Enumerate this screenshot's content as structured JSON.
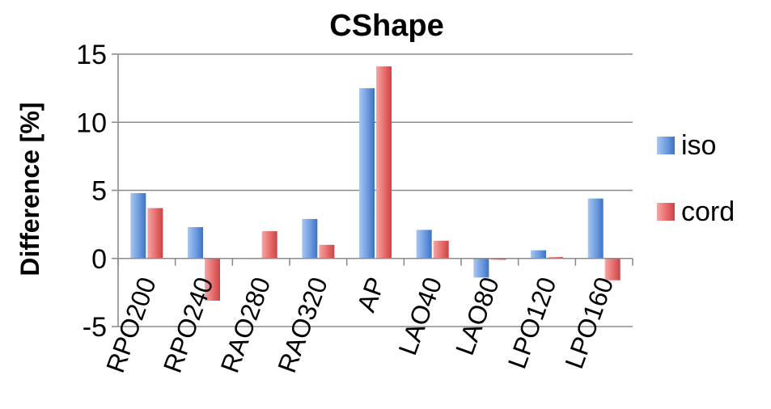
{
  "chart_data": {
    "type": "bar",
    "title": "CShape",
    "ylabel": "Difference [%]",
    "xlabel": "",
    "ylim": [
      -5,
      15
    ],
    "yticks": [
      -5,
      0,
      5,
      10,
      15
    ],
    "grid": true,
    "legend_position": "right",
    "categories": [
      "RPO200",
      "RPO240",
      "RAO280",
      "RAO320",
      "AP",
      "LAO40",
      "LAO80",
      "LPO120",
      "LPO160"
    ],
    "series": [
      {
        "name": "iso",
        "color": "#5b8fd9",
        "values": [
          4.8,
          2.3,
          0.0,
          2.9,
          12.5,
          2.1,
          -1.4,
          0.6,
          4.4
        ]
      },
      {
        "name": "cord",
        "color": "#e36a6a",
        "values": [
          3.7,
          -3.1,
          2.0,
          1.0,
          14.1,
          1.3,
          -0.1,
          0.1,
          -1.6
        ]
      }
    ]
  }
}
